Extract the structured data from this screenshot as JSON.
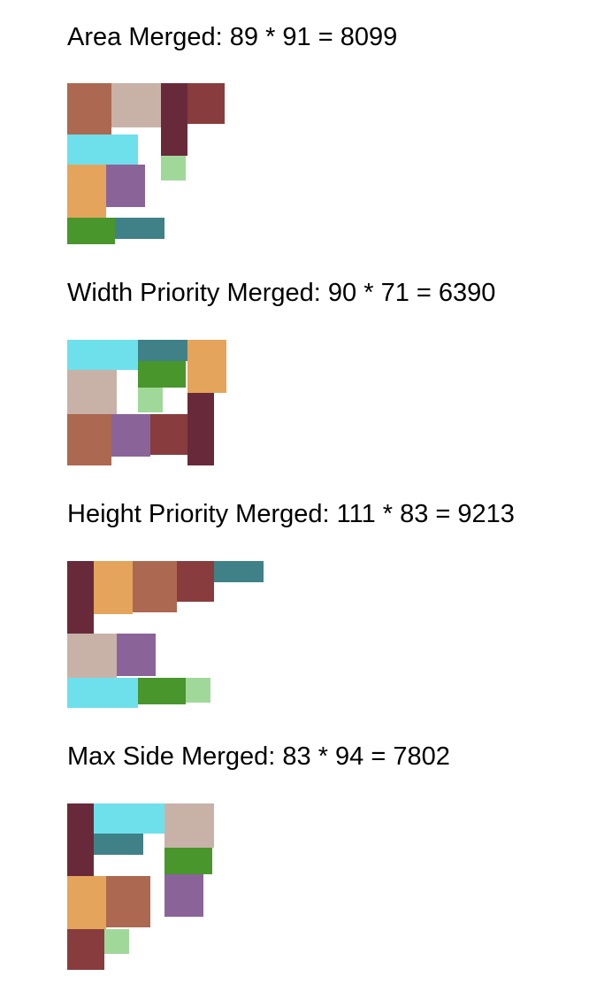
{
  "colors": {
    "rust": "#ac6850",
    "tan": "#c8b2a8",
    "maroon": "#682a3a",
    "red_brown": "#883c3e",
    "cyan": "#6ee0ec",
    "light_green": "#a0d89a",
    "orange": "#e4a45c",
    "purple": "#8a6498",
    "green": "#48962c",
    "teal": "#408188"
  },
  "packings": [
    {
      "name": "area",
      "title": "Area Merged: 89 * 91 = 8099"
    },
    {
      "name": "width-priority",
      "title": "Width Priority Merged: 90 * 71 = 6390"
    },
    {
      "name": "height-priority",
      "title": "Height Priority Merged: 111 * 83 = 9213"
    },
    {
      "name": "max-side",
      "title": "Max Side Merged: 83 * 94 = 7802"
    }
  ]
}
